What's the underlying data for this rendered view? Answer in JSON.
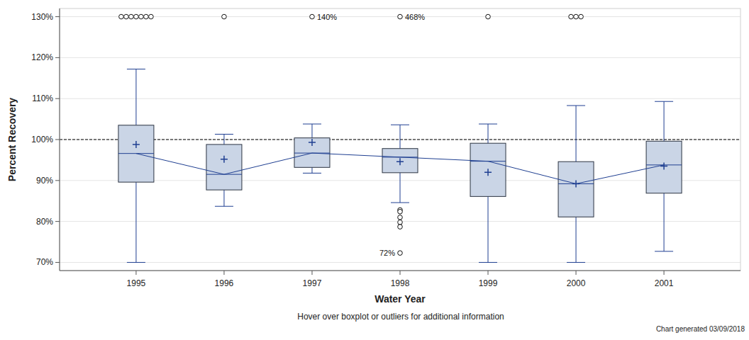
{
  "chart_data": {
    "type": "boxplot",
    "categories": [
      "1995",
      "1996",
      "1997",
      "1998",
      "1999",
      "2000",
      "2001"
    ],
    "boxes": [
      {
        "low": 70.0,
        "q1": 89.6,
        "median": 96.6,
        "q3": 103.5,
        "high": 117.2,
        "mean": 98.8,
        "outliers": [
          130,
          130,
          130,
          130,
          130,
          130,
          130
        ]
      },
      {
        "low": 83.7,
        "q1": 87.7,
        "median": 91.5,
        "q3": 98.8,
        "high": 101.3,
        "mean": 95.2,
        "outliers": [
          130
        ]
      },
      {
        "low": 91.8,
        "q1": 93.2,
        "median": 96.7,
        "q3": 100.4,
        "high": 103.8,
        "mean": 99.3,
        "outliers": [
          130
        ]
      },
      {
        "low": 84.6,
        "q1": 91.9,
        "median": 95.7,
        "q3": 97.8,
        "high": 103.6,
        "mean": 94.6,
        "outliers": [
          130,
          82.8,
          82.4,
          81.0,
          79.8,
          78.7,
          72.3
        ]
      },
      {
        "low": 70.0,
        "q1": 86.1,
        "median": 94.7,
        "q3": 99.1,
        "high": 103.8,
        "mean": 92.0,
        "outliers": [
          130
        ]
      },
      {
        "low": 70.0,
        "q1": 81.1,
        "median": 89.2,
        "q3": 94.6,
        "high": 108.3,
        "mean": 89.2,
        "outliers": [
          130,
          130,
          130
        ]
      },
      {
        "low": 72.7,
        "q1": 86.9,
        "median": 93.8,
        "q3": 99.6,
        "high": 109.3,
        "mean": 93.5,
        "outliers": []
      }
    ],
    "color": "#cad5e6",
    "ylim": [
      68,
      132
    ],
    "yticks": [
      {
        "value": 70,
        "label": "70%"
      },
      {
        "value": 80,
        "label": "80%"
      },
      {
        "value": 90,
        "label": "90%"
      },
      {
        "value": 100,
        "label": "100%"
      },
      {
        "value": 110,
        "label": "110%"
      },
      {
        "value": 120,
        "label": "120%"
      },
      {
        "value": 130,
        "label": "130%"
      }
    ],
    "grid": true,
    "reference_line": 100,
    "x_label": "Water Year",
    "y_label": "Percent Recovery",
    "annotations": [
      {
        "text": "140%",
        "category": "1997",
        "y": 130
      },
      {
        "text": "468%",
        "category": "1998",
        "y": 130
      },
      {
        "text": "72%",
        "category": "1998",
        "y": 72.3
      }
    ],
    "caption": "Hover over boxplot or outliers for additional information",
    "footnote": "Chart generated 03/09/2018"
  }
}
